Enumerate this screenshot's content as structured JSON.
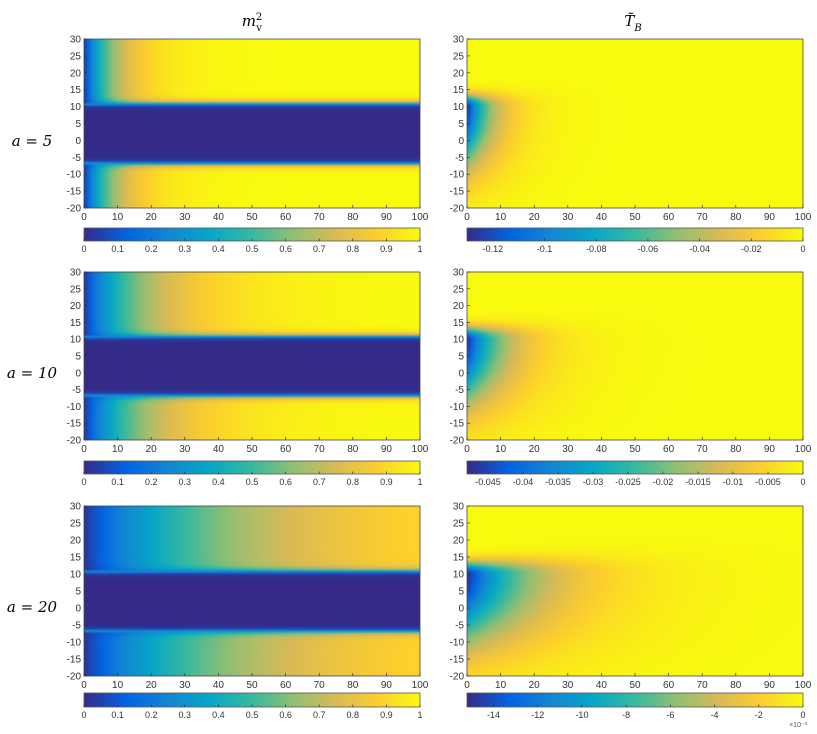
{
  "chart_data": {
    "type": "heatmap",
    "column_titles": [
      {
        "base": "m",
        "sup": "2",
        "sub": "v"
      },
      {
        "base": "T̃",
        "sub": "B"
      }
    ],
    "rows": [
      {
        "label": "a = 5",
        "panels": [
          {
            "field": "m_v^2",
            "xlim": [
              0,
              100
            ],
            "ylim": [
              -20,
              30
            ],
            "xticks": [
              "0",
              "10",
              "20",
              "30",
              "40",
              "50",
              "60",
              "70",
              "80",
              "90",
              "100"
            ],
            "yticks": [
              "30",
              "25",
              "20",
              "15",
              "10",
              "5",
              "0",
              "-5",
              "-10",
              "-15",
              "-20"
            ],
            "colorbar": {
              "range": [
                0,
                1
              ],
              "ticks": [
                "0",
                "0.1",
                "0.2",
                "0.3",
                "0.4",
                "0.5",
                "0.6",
                "0.7",
                "0.8",
                "0.9",
                "1"
              ]
            },
            "model": {
              "band_low": -7,
              "band_high": 11,
              "boundary_scale": 9
            }
          },
          {
            "field": "T_B",
            "xlim": [
              0,
              100
            ],
            "ylim": [
              -20,
              30
            ],
            "xticks": [
              "0",
              "10",
              "20",
              "30",
              "40",
              "50",
              "60",
              "70",
              "80",
              "90",
              "100"
            ],
            "yticks": [
              "30",
              "25",
              "20",
              "15",
              "10",
              "5",
              "0",
              "-5",
              "-10",
              "-15",
              "-20"
            ],
            "colorbar": {
              "range": [
                -0.13,
                0
              ],
              "ticks": [
                "-0.12",
                "-0.1",
                "-0.08",
                "-0.06",
                "-0.04",
                "-0.02",
                "0"
              ]
            },
            "model": {
              "source_x": 0,
              "source_y": 10,
              "reach": 22,
              "tail": 12
            }
          }
        ]
      },
      {
        "label": "a = 10",
        "panels": [
          {
            "field": "m_v^2",
            "xlim": [
              0,
              100
            ],
            "ylim": [
              -20,
              30
            ],
            "xticks": [
              "0",
              "10",
              "20",
              "30",
              "40",
              "50",
              "60",
              "70",
              "80",
              "90",
              "100"
            ],
            "yticks": [
              "30",
              "25",
              "20",
              "15",
              "10",
              "5",
              "0",
              "-5",
              "-10",
              "-15",
              "-20"
            ],
            "colorbar": {
              "range": [
                0,
                1
              ],
              "ticks": [
                "0",
                "0.1",
                "0.2",
                "0.3",
                "0.4",
                "0.5",
                "0.6",
                "0.7",
                "0.8",
                "0.9",
                "1"
              ]
            },
            "model": {
              "band_low": -7,
              "band_high": 11,
              "boundary_scale": 18
            }
          },
          {
            "field": "T_B",
            "xlim": [
              0,
              100
            ],
            "ylim": [
              -20,
              30
            ],
            "xticks": [
              "0",
              "10",
              "20",
              "30",
              "40",
              "50",
              "60",
              "70",
              "80",
              "90",
              "100"
            ],
            "yticks": [
              "30",
              "25",
              "20",
              "15",
              "10",
              "5",
              "0",
              "-5",
              "-10",
              "-15",
              "-20"
            ],
            "colorbar": {
              "range": [
                -0.048,
                0
              ],
              "ticks": [
                "-0.045",
                "-0.04",
                "-0.035",
                "-0.03",
                "-0.025",
                "-0.02",
                "-0.015",
                "-0.01",
                "-0.005",
                "0"
              ]
            },
            "model": {
              "source_x": 0,
              "source_y": 10,
              "reach": 33,
              "tail": 13
            }
          }
        ]
      },
      {
        "label": "a = 20",
        "panels": [
          {
            "field": "m_v^2",
            "xlim": [
              0,
              100
            ],
            "ylim": [
              -20,
              30
            ],
            "xticks": [
              "0",
              "10",
              "20",
              "30",
              "40",
              "50",
              "60",
              "70",
              "80",
              "90",
              "100"
            ],
            "yticks": [
              "30",
              "25",
              "20",
              "15",
              "10",
              "5",
              "0",
              "-5",
              "-10",
              "-15",
              "-20"
            ],
            "colorbar": {
              "range": [
                0,
                1
              ],
              "ticks": [
                "0",
                "0.1",
                "0.2",
                "0.3",
                "0.4",
                "0.5",
                "0.6",
                "0.7",
                "0.8",
                "0.9",
                "1"
              ]
            },
            "model": {
              "band_low": -7,
              "band_high": 11,
              "boundary_scale": 45
            }
          },
          {
            "field": "T_B",
            "xlim": [
              0,
              100
            ],
            "ylim": [
              -20,
              30
            ],
            "xticks": [
              "0",
              "10",
              "20",
              "30",
              "40",
              "50",
              "60",
              "70",
              "80",
              "90",
              "100"
            ],
            "yticks": [
              "30",
              "25",
              "20",
              "15",
              "10",
              "5",
              "0",
              "-5",
              "-10",
              "-15",
              "-20"
            ],
            "colorbar": {
              "range": [
                -0.0152,
                0
              ],
              "ticks": [
                "-14",
                "-12",
                "-10",
                "-8",
                "-6",
                "-4",
                "-2",
                "0"
              ],
              "tick_values": [
                -0.014,
                -0.012,
                -0.01,
                -0.008,
                -0.006,
                -0.004,
                -0.002,
                0
              ],
              "exponent_label": "×10⁻³"
            },
            "model": {
              "source_x": 0,
              "source_y": 10,
              "reach": 58,
              "tail": 14
            }
          }
        ]
      }
    ],
    "colormap": "parula",
    "colormap_stops": [
      "#352a87",
      "#0363e1",
      "#1485d4",
      "#06a7c6",
      "#38b99e",
      "#92bf73",
      "#d9ba56",
      "#fcce2e",
      "#f9fb0e"
    ]
  }
}
